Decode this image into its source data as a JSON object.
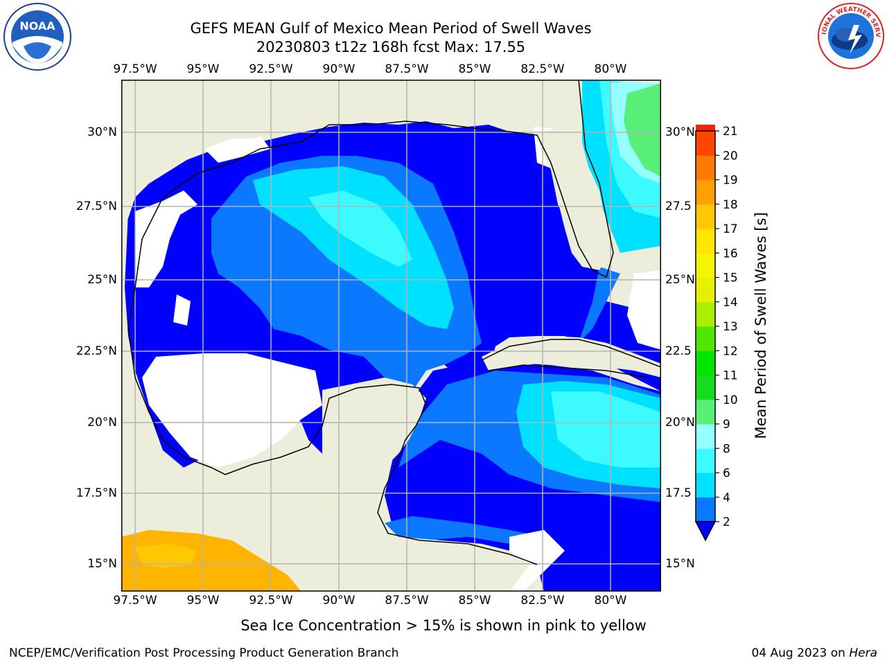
{
  "title": {
    "line1": "GEFS MEAN Gulf of Mexico Mean Period of Swell Waves",
    "line2": "20230803 t12z 168h fcst   Max: 17.55"
  },
  "logos": {
    "left": {
      "icon": "noaa-logo",
      "text": "NOAA"
    },
    "right": {
      "icon": "national-weather-service-logo",
      "text": "NATIONAL WEATHER SERVICE"
    }
  },
  "map": {
    "x_labels_top": [
      "97.5°W",
      "95°W",
      "92.5°W",
      "90°W",
      "87.5°W",
      "85°W",
      "82.5°W",
      "80°W"
    ],
    "x_labels_bottom": [
      "97.5°W",
      "95°W",
      "92.5°W",
      "90°W",
      "87.5°W",
      "85°W",
      "82.5°W",
      "80°W"
    ],
    "y_labels_left": [
      "30°N",
      "27.5°N",
      "25°N",
      "22.5°N",
      "20°N",
      "17.5°N",
      "15°N"
    ],
    "y_labels_right": [
      "30°N",
      "27.5",
      "25°N",
      "22.5",
      "20°N",
      "17.5",
      "15°N"
    ],
    "colors": {
      "land": "#ededdc",
      "grid": "#b4b4b4",
      "no_data": "#ffffff"
    }
  },
  "colorbar": {
    "title": "Mean Period of Swell Waves [s]",
    "ticks": [
      "2",
      "4",
      "6",
      "8",
      "9",
      "10",
      "11",
      "12",
      "13",
      "14",
      "15",
      "16",
      "17",
      "18",
      "19",
      "20",
      "21"
    ],
    "colors": [
      "#0a78ff",
      "#00e1ff",
      "#3cfaff",
      "#96ffff",
      "#5af078",
      "#14dc1e",
      "#00e600",
      "#50e600",
      "#aaee00",
      "#e6f000",
      "#f5f500",
      "#ffe600",
      "#ffc800",
      "#ffa000",
      "#ff7800",
      "#ff4600",
      "#ff1e00"
    ],
    "under_color": "#0000ff"
  },
  "ice_note": "Sea Ice Concentration > 15% is shown in pink to yellow",
  "footer": {
    "left": "NCEP/EMC/Verification Post Processing Product Generation Branch",
    "date": "04 Aug 2023 on",
    "host": "Hera"
  }
}
